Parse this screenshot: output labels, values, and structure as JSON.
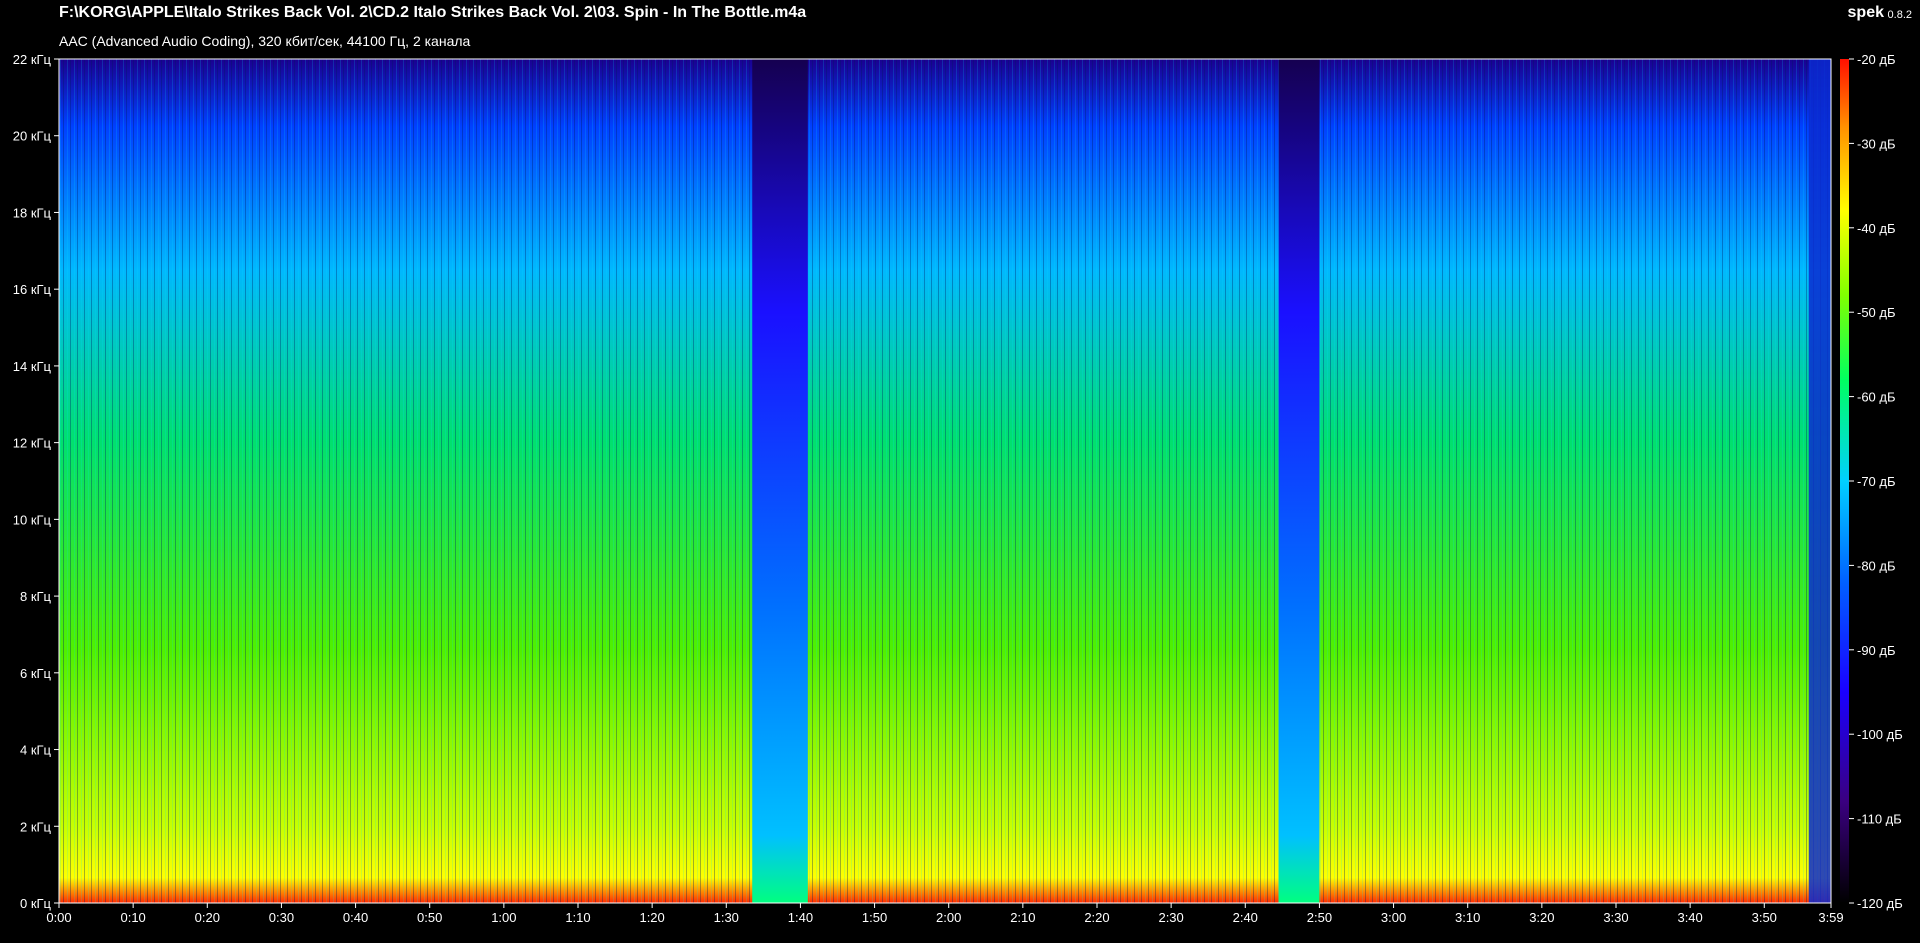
{
  "window": {
    "file_path": "F:\\KORG\\APPLE\\Italo Strikes Back Vol. 2\\CD.2 Italo Strikes Back Vol. 2\\03. Spin - In The Bottle.m4a",
    "file_info": "AAC (Advanced Audio Coding), 320 кбит/сек, 44100 Гц, 2 канала",
    "app_name": "spek",
    "app_version": "0.8.2"
  },
  "chart_data": {
    "type": "heatmap",
    "y_ticks": [
      "0 кГц",
      "2 кГц",
      "4 кГц",
      "6 кГц",
      "8 кГц",
      "10 кГц",
      "12 кГц",
      "14 кГц",
      "16 кГц",
      "18 кГц",
      "20 кГц",
      "22 кГц"
    ],
    "x_ticks": [
      "0:00",
      "0:10",
      "0:20",
      "0:30",
      "0:40",
      "0:50",
      "1:00",
      "1:10",
      "1:20",
      "1:30",
      "1:40",
      "1:50",
      "2:00",
      "2:10",
      "2:20",
      "2:30",
      "2:40",
      "2:50",
      "3:00",
      "3:10",
      "3:20",
      "3:30",
      "3:40",
      "3:50",
      "3:59"
    ],
    "x_range_seconds": [
      0,
      239
    ],
    "y_range_khz": [
      0,
      22
    ],
    "colorbar_ticks": [
      "-20 дБ",
      "-30 дБ",
      "-40 дБ",
      "-50 дБ",
      "-60 дБ",
      "-70 дБ",
      "-80 дБ",
      "-90 дБ",
      "-100 дБ",
      "-110 дБ",
      "-120 дБ"
    ],
    "colorbar_range_db": [
      -120,
      -20
    ],
    "colormap": [
      "#000000",
      "#3a0080",
      "#1a00ff",
      "#0060ff",
      "#00d0ff",
      "#00ff60",
      "#80ff00",
      "#ffff00",
      "#ff9000",
      "#ff1000"
    ],
    "quiet_sections_seconds": [
      [
        93.5,
        101
      ],
      [
        164.5,
        170
      ]
    ],
    "fade_out_seconds": [
      236,
      239
    ]
  }
}
